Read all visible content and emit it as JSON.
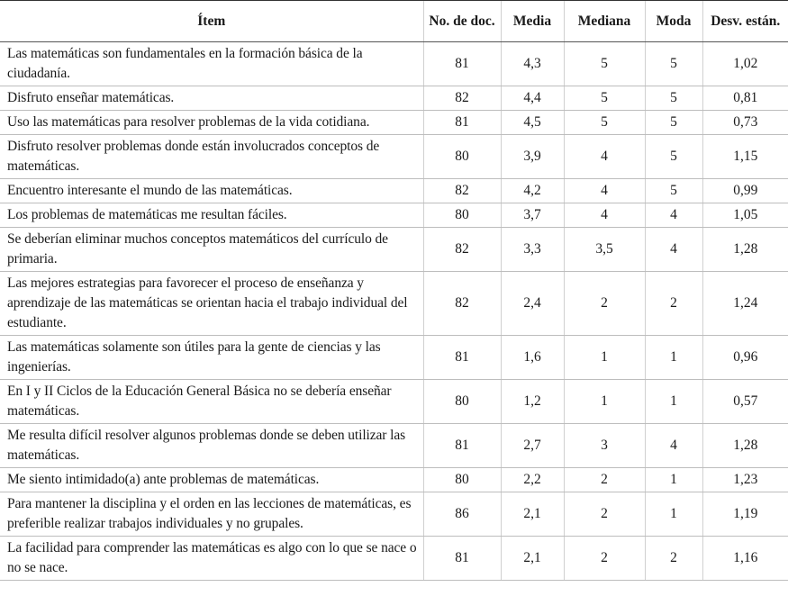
{
  "table": {
    "header": [
      "Ítem",
      "No. de doc.",
      "Media",
      "Mediana",
      "Moda",
      "Desv. están."
    ],
    "rows": [
      [
        "Las matemáticas son fundamentales en la formación básica de la ciudadanía.",
        "81",
        "4,3",
        "5",
        "5",
        "1,02"
      ],
      [
        "Disfruto enseñar matemáticas.",
        "82",
        "4,4",
        "5",
        "5",
        "0,81"
      ],
      [
        "Uso las matemáticas para resolver problemas de la vida cotidiana.",
        "81",
        "4,5",
        "5",
        "5",
        "0,73"
      ],
      [
        "Disfruto resolver problemas donde están involucrados conceptos de matemáticas.",
        "80",
        "3,9",
        "4",
        "5",
        "1,15"
      ],
      [
        "Encuentro interesante el mundo de las matemáticas.",
        "82",
        "4,2",
        "4",
        "5",
        "0,99"
      ],
      [
        "Los problemas de matemáticas me resultan fáciles.",
        "80",
        "3,7",
        "4",
        "4",
        "1,05"
      ],
      [
        "Se deberían eliminar muchos conceptos matemáticos del currículo de primaria.",
        "82",
        "3,3",
        "3,5",
        "4",
        "1,28"
      ],
      [
        "Las mejores estrategias para favorecer el proceso de enseñanza y aprendizaje de las matemáticas se orientan hacia el trabajo individual del estudiante.",
        "82",
        "2,4",
        "2",
        "2",
        "1,24"
      ],
      [
        "Las matemáticas solamente son útiles para la gente de ciencias y las ingenierías.",
        "81",
        "1,6",
        "1",
        "1",
        "0,96"
      ],
      [
        "En I y II Ciclos de la Educación General Básica no se debería enseñar matemáticas.",
        "80",
        "1,2",
        "1",
        "1",
        "0,57"
      ],
      [
        "Me resulta difícil resolver algunos problemas donde se deben utilizar las matemáticas.",
        "81",
        "2,7",
        "3",
        "4",
        "1,28"
      ],
      [
        "Me siento intimidado(a) ante problemas de matemáticas.",
        "80",
        "2,2",
        "2",
        "1",
        "1,23"
      ],
      [
        "Para mantener la disciplina y el orden en las lecciones de matemáticas, es preferible realizar trabajos individuales y no grupales.",
        "86",
        "2,1",
        "2",
        "1",
        "1,19"
      ],
      [
        "La facilidad para comprender las matemáticas es algo con lo que se nace o no se nace.",
        "81",
        "2,1",
        "2",
        "2",
        "1,16"
      ]
    ]
  }
}
